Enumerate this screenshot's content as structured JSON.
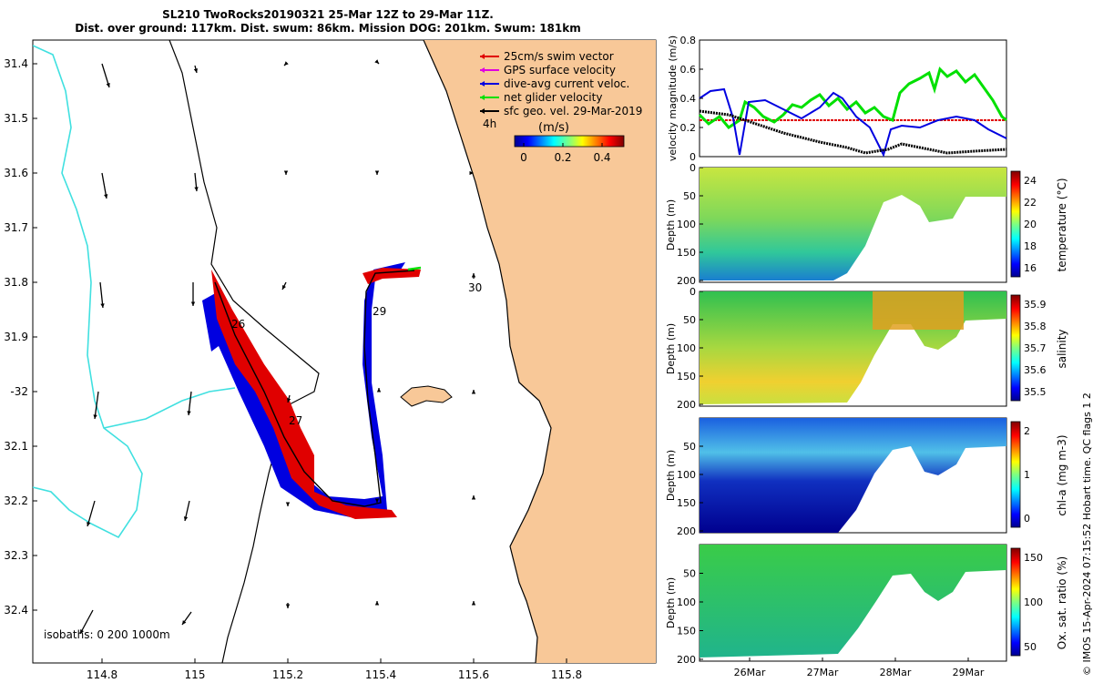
{
  "title": {
    "line1": "SL210 TwoRocks20190321 25-Mar 12Z to 29-Mar 11Z.",
    "line2": "Dist. over ground: 117km. Dist. swum: 86km. Mission DOG: 201km. Swum: 181km"
  },
  "map": {
    "lat_ticks": [
      "31.4",
      "31.5",
      "31.6",
      "31.7",
      "31.8",
      "31.9",
      "-32",
      "32.1",
      "32.2",
      "32.3",
      "32.4"
    ],
    "lon_ticks": [
      "114.8",
      "115",
      "115.2",
      "115.4",
      "115.6",
      "115.8"
    ],
    "legend": [
      {
        "label": "25cm/s swim vector",
        "color": "#e00000"
      },
      {
        "label": "GPS surface velocity",
        "color": "#e000e0"
      },
      {
        "label": "dive-avg current veloc.",
        "color": "#0000e0"
      },
      {
        "label": "net glider velocity",
        "color": "#00e000"
      },
      {
        "label": "sfc geo. vel. 29-Mar-2019",
        "color": "#000000"
      }
    ],
    "legend_extra": "4h",
    "colorbar_title": "(m/s)",
    "colorbar_ticks": [
      "0",
      "0.2",
      "0.4"
    ],
    "day_labels": [
      "26",
      "27",
      "29",
      "30"
    ],
    "isobaths_label": "isobaths: 0   200  1000m",
    "land_color": "#f8c898",
    "isobath_color": "#40e0e0"
  },
  "velocity_panel": {
    "ylabel": "velocity magnitude (m/s)",
    "yticks": [
      "0",
      "0.2",
      "0.4",
      "0.6",
      "0.8"
    ]
  },
  "section_panels": [
    {
      "id": "temperature",
      "ylabel": "Depth (m)",
      "cbar_label": "temperature (°C)",
      "cbar_ticks": [
        "24",
        "22",
        "20",
        "18",
        "16"
      ],
      "yticks": [
        "0",
        "50",
        "100",
        "150",
        "200"
      ]
    },
    {
      "id": "salinity",
      "ylabel": "Depth (m)",
      "cbar_label": "salinity",
      "cbar_ticks": [
        "35.9",
        "35.8",
        "35.7",
        "35.6",
        "35.5"
      ],
      "yticks": [
        "0",
        "50",
        "100",
        "150",
        "200"
      ]
    },
    {
      "id": "chla",
      "ylabel": "Depth (m)",
      "cbar_label": "chl-a (mg m-3)",
      "cbar_ticks": [
        "2",
        "1",
        "0"
      ],
      "yticks": [
        "50",
        "100",
        "150",
        "200"
      ]
    },
    {
      "id": "oxygen",
      "ylabel": "Depth (m)",
      "cbar_label": "Ox. sat. ratio (%)",
      "cbar_ticks": [
        "150",
        "100",
        "50"
      ],
      "yticks": [
        "50",
        "100",
        "150",
        "200"
      ]
    }
  ],
  "date_ticks": [
    "26Mar",
    "27Mar",
    "28Mar",
    "29Mar"
  ],
  "footer": "© IMOS 15-Apr-2024 07:15:52 Hobart time. QC flags 1  2"
}
